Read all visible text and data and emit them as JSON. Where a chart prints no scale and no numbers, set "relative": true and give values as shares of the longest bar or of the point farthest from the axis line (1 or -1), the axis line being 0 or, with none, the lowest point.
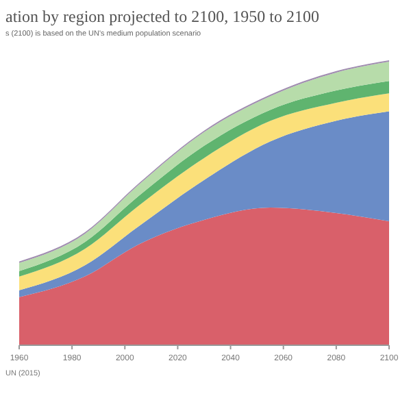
{
  "chart_data": {
    "type": "area",
    "stacked": true,
    "relative": true,
    "title": "ation by region projected to 2100, 1950 to 2100",
    "subtitle": "s (2100) is based on the UN's medium population scenario",
    "annotations": [
      "UN (2015)"
    ],
    "x": [
      1960,
      1985,
      2005,
      2030,
      2055,
      2080,
      2100
    ],
    "xlim": [
      1960,
      2100
    ],
    "xticks": [
      1960,
      1980,
      2000,
      2020,
      2040,
      2060,
      2080,
      2100
    ],
    "series": [
      {
        "color": "#d9606a",
        "values": [
          0.169,
          0.242,
          0.353,
          0.44,
          0.483,
          0.464,
          0.435
        ]
      },
      {
        "color": "#6a8cc7",
        "values": [
          0.024,
          0.039,
          0.063,
          0.14,
          0.232,
          0.324,
          0.386
        ]
      },
      {
        "color": "#fbe07a",
        "values": [
          0.048,
          0.058,
          0.072,
          0.077,
          0.072,
          0.063,
          0.063
        ]
      },
      {
        "color": "#5fb46f",
        "values": [
          0.019,
          0.024,
          0.034,
          0.043,
          0.039,
          0.043,
          0.043
        ]
      },
      {
        "color": "#b7dcaa",
        "values": [
          0.029,
          0.029,
          0.039,
          0.048,
          0.048,
          0.063,
          0.068
        ]
      },
      {
        "color": "#a08cb0",
        "values": [
          0.005,
          0.005,
          0.005,
          0.005,
          0.005,
          0.005,
          0.005
        ]
      }
    ]
  }
}
